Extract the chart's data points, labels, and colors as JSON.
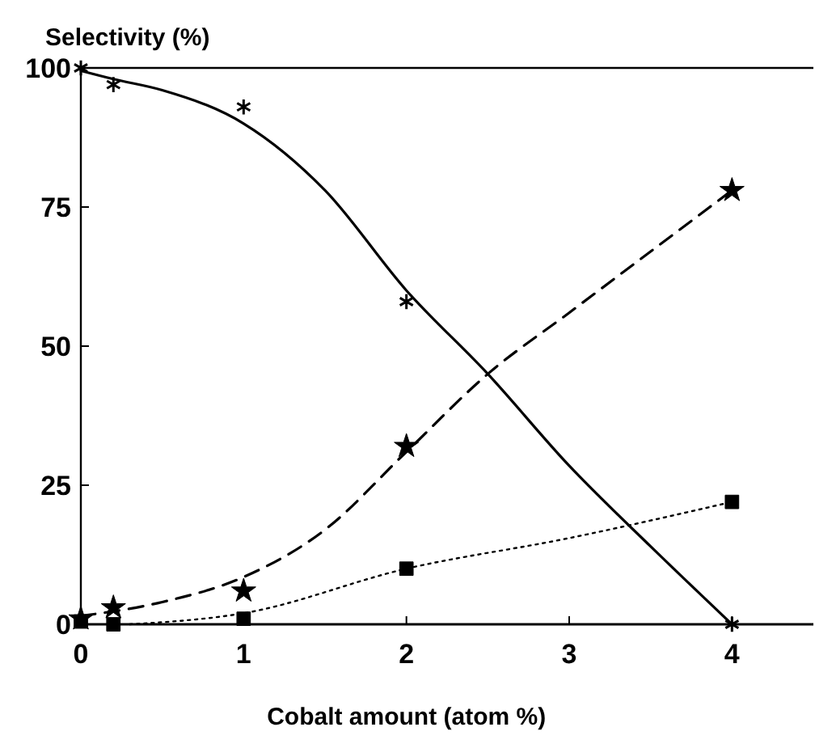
{
  "chart_data": {
    "type": "scatter",
    "xlabel": "Cobalt amount (atom %)",
    "ylabel": "Selectivity (%)",
    "xlim": [
      0,
      4.5
    ],
    "ylim": [
      0,
      100
    ],
    "xticks": [
      0,
      1,
      2,
      3,
      4
    ],
    "yticks": [
      0,
      25,
      50,
      75,
      100
    ],
    "grid": false,
    "series": [
      {
        "marker": "cross",
        "color": "#000000",
        "x": [
          0,
          0.2,
          1,
          2,
          4
        ],
        "values": [
          100,
          97,
          93,
          58,
          0
        ]
      },
      {
        "marker": "star",
        "color": "#000000",
        "x": [
          0,
          0.2,
          1,
          2,
          4
        ],
        "values": [
          1,
          3,
          6,
          32,
          78
        ]
      },
      {
        "marker": "square",
        "color": "#000000",
        "x": [
          0,
          0.2,
          1,
          2,
          4
        ],
        "values": [
          0.5,
          0,
          1,
          10,
          22
        ]
      },
      {
        "type": "line",
        "line_style": "solid",
        "color": "#000000",
        "x": [
          0,
          0.2,
          0.5,
          1,
          1.5,
          2,
          2.5,
          3,
          3.5,
          4
        ],
        "values": [
          99.5,
          98,
          96,
          90,
          78,
          60,
          45,
          28.5,
          14,
          0
        ]
      },
      {
        "type": "line",
        "line_style": "dashed",
        "color": "#000000",
        "x": [
          0,
          0.5,
          1,
          1.5,
          2,
          2.5,
          3,
          3.5,
          4
        ],
        "values": [
          1.5,
          4,
          8.5,
          17,
          31,
          45,
          56,
          67,
          78
        ]
      },
      {
        "type": "line",
        "line_style": "dotted",
        "color": "#000000",
        "x": [
          0.3,
          1,
          2,
          3,
          4
        ],
        "values": [
          0,
          2,
          10,
          15.5,
          22
        ]
      }
    ]
  }
}
